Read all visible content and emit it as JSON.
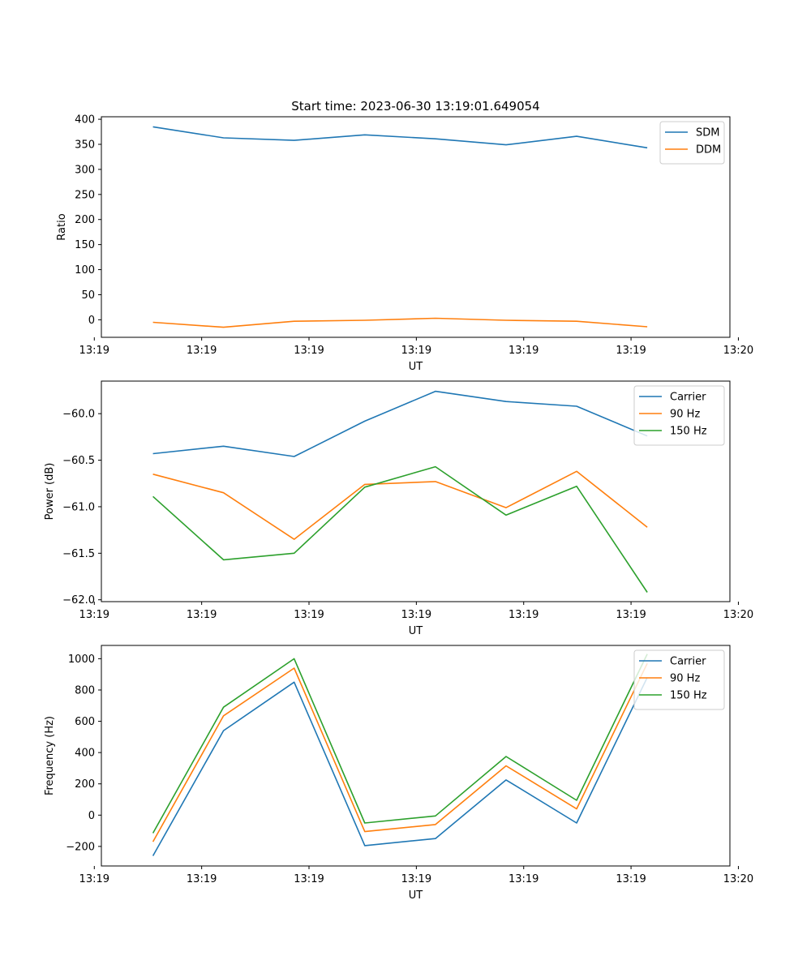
{
  "figure_title": "Start time: 2023-06-30 13:19:01.649054",
  "colors": {
    "blue": "#1f77b4",
    "orange": "#ff7f0e",
    "green": "#2ca02c"
  },
  "chart_data": [
    {
      "type": "line",
      "title": "Start time: 2023-06-30 13:19:01.649054",
      "xlabel": "UT",
      "ylabel": "Ratio",
      "x_tick_labels": [
        "13:19",
        "13:19",
        "13:19",
        "13:19",
        "13:19",
        "13:19",
        "13:20"
      ],
      "y_ticks": [
        0,
        50,
        100,
        150,
        200,
        250,
        300,
        350,
        400
      ],
      "ylim": [
        -35,
        405
      ],
      "x": [
        1,
        2,
        3,
        4,
        5,
        6,
        7,
        8
      ],
      "xlim": [
        0.27,
        9.17
      ],
      "grid": false,
      "legend_position": "top-right",
      "series": [
        {
          "name": "SDM",
          "color": "#1f77b4",
          "values": [
            385,
            363,
            358,
            369,
            361,
            349,
            366,
            343
          ]
        },
        {
          "name": "DDM",
          "color": "#ff7f0e",
          "values": [
            -5,
            -15,
            -3,
            -1,
            3,
            -1,
            -3,
            -14
          ]
        }
      ]
    },
    {
      "type": "line",
      "title": "",
      "xlabel": "UT",
      "ylabel": "Power (dB)",
      "x_tick_labels": [
        "13:19",
        "13:19",
        "13:19",
        "13:19",
        "13:19",
        "13:19",
        "13:20"
      ],
      "y_ticks": [
        -62.0,
        -61.5,
        -61.0,
        -60.5,
        -60.0
      ],
      "y_tick_labels": [
        "−62.0",
        "−61.5",
        "−61.0",
        "−60.5",
        "−60.0"
      ],
      "ylim": [
        -62.02,
        -59.65
      ],
      "x": [
        1,
        2,
        3,
        4,
        5,
        6,
        7,
        8
      ],
      "xlim": [
        0.27,
        9.17
      ],
      "grid": false,
      "legend_position": "top-right",
      "series": [
        {
          "name": "Carrier",
          "color": "#1f77b4",
          "values": [
            -60.43,
            -60.35,
            -60.46,
            -60.08,
            -59.76,
            -59.87,
            -59.92,
            -60.24
          ]
        },
        {
          "name": "90 Hz",
          "color": "#ff7f0e",
          "values": [
            -60.65,
            -60.85,
            -61.35,
            -60.76,
            -60.73,
            -61.01,
            -60.62,
            -61.22
          ]
        },
        {
          "name": "150 Hz",
          "color": "#2ca02c",
          "values": [
            -60.89,
            -61.57,
            -61.5,
            -60.79,
            -60.57,
            -61.09,
            -60.78,
            -61.92
          ]
        }
      ]
    },
    {
      "type": "line",
      "title": "",
      "xlabel": "UT",
      "ylabel": "Frequency (Hz)",
      "x_tick_labels": [
        "13:19",
        "13:19",
        "13:19",
        "13:19",
        "13:19",
        "13:19",
        "13:20"
      ],
      "y_ticks": [
        -200,
        0,
        200,
        400,
        600,
        800,
        1000
      ],
      "y_tick_labels": [
        "−200",
        "0",
        "200",
        "400",
        "600",
        "800",
        "1000"
      ],
      "ylim": [
        -325,
        1085
      ],
      "x": [
        1,
        2,
        3,
        4,
        5,
        6,
        7,
        8
      ],
      "xlim": [
        0.27,
        9.17
      ],
      "grid": false,
      "legend_position": "top-right",
      "series": [
        {
          "name": "Carrier",
          "color": "#1f77b4",
          "values": [
            -260,
            540,
            850,
            -195,
            -150,
            225,
            -50,
            880
          ]
        },
        {
          "name": "90 Hz",
          "color": "#ff7f0e",
          "values": [
            -170,
            635,
            940,
            -105,
            -60,
            315,
            40,
            970
          ]
        },
        {
          "name": "150 Hz",
          "color": "#2ca02c",
          "values": [
            -115,
            690,
            1000,
            -50,
            -5,
            375,
            95,
            1030
          ]
        }
      ]
    }
  ]
}
